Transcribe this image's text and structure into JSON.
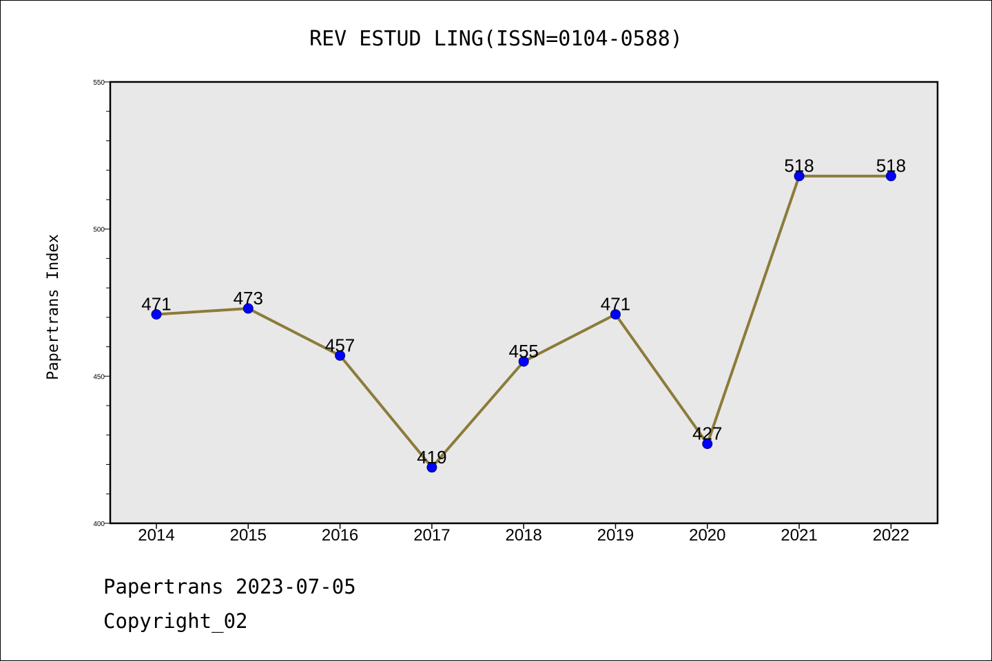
{
  "chart_data": {
    "type": "line",
    "title": "REV ESTUD LING(ISSN=0104-0588)",
    "xlabel": "",
    "ylabel": "Papertrans Index",
    "categories": [
      "2014",
      "2015",
      "2016",
      "2017",
      "2018",
      "2019",
      "2020",
      "2021",
      "2022"
    ],
    "values": [
      471,
      473,
      457,
      419,
      455,
      471,
      427,
      518,
      518
    ],
    "data_labels": [
      "471",
      "473",
      "457",
      "419",
      "455",
      "471",
      "427",
      "518",
      "518"
    ],
    "ylim": [
      400,
      550
    ],
    "yticks": [
      400,
      450,
      500,
      550
    ],
    "ytick_labels": [
      "400",
      "450",
      "500",
      "550"
    ],
    "grid": false,
    "colors": {
      "line": "#8c7b3a",
      "marker": "#0000ff",
      "plot_bg": "#e8e8e8"
    }
  },
  "footer": {
    "line1": "Papertrans 2023-07-05",
    "line2": "Copyright_02"
  }
}
